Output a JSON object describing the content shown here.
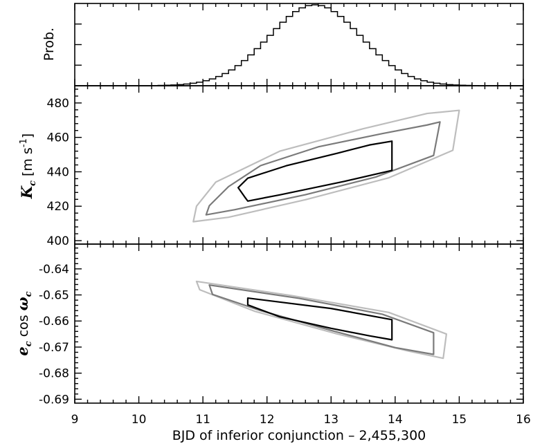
{
  "chart_data": [
    {
      "type": "histogram",
      "ylabel": "Prob.",
      "xlim": [
        9,
        16
      ],
      "bin_width": 0.1,
      "gaussian_mean": 12.75,
      "gaussian_sigma": 0.72,
      "bin_range": [
        9.8,
        15.6
      ]
    },
    {
      "type": "contour",
      "ylabel_main": "K",
      "ylabel_sub": "c",
      "ylabel_units": "[m s",
      "ylabel_exp": "-1",
      "ylabel_close": "]",
      "xlim": [
        9,
        16
      ],
      "ylim": [
        398,
        490
      ],
      "yticks": [
        "400",
        "420",
        "440",
        "460",
        "480"
      ],
      "ytick_values": [
        400,
        420,
        440,
        460,
        480
      ],
      "contours": [
        {
          "level": "1-sigma",
          "color": "#000000",
          "points": [
            [
              11.7,
              423.0
            ],
            [
              12.2,
              426.6
            ],
            [
              13.2,
              434.4
            ],
            [
              13.95,
              440.8
            ],
            [
              13.95,
              457.8
            ],
            [
              13.6,
              455.6
            ],
            [
              13.1,
              450.8
            ],
            [
              12.3,
              443.5
            ],
            [
              11.7,
              436.3
            ],
            [
              11.55,
              430.8
            ],
            [
              11.65,
              425.5
            ]
          ]
        },
        {
          "level": "2-sigma",
          "color": "#7a7a7a",
          "points": [
            [
              11.05,
              415.0
            ],
            [
              11.5,
              418.0
            ],
            [
              12.6,
              426.7
            ],
            [
              13.7,
              437.0
            ],
            [
              14.6,
              449.5
            ],
            [
              14.7,
              469.0
            ],
            [
              14.5,
              467.2
            ],
            [
              13.8,
              462.2
            ],
            [
              12.8,
              454.5
            ],
            [
              11.9,
              443.6
            ],
            [
              11.4,
              431.4
            ],
            [
              11.1,
              420.3
            ]
          ]
        },
        {
          "level": "3-sigma",
          "color": "#bdbdbd",
          "points": [
            [
              10.85,
              411.0
            ],
            [
              11.4,
              413.6
            ],
            [
              12.6,
              423.8
            ],
            [
              13.9,
              436.5
            ],
            [
              14.9,
              452.5
            ],
            [
              15.0,
              475.7
            ],
            [
              14.5,
              473.9
            ],
            [
              13.5,
              465.0
            ],
            [
              12.2,
              452.0
            ],
            [
              11.2,
              434.0
            ],
            [
              10.9,
              420.0
            ]
          ]
        }
      ]
    },
    {
      "type": "contour",
      "ylabel_pre": "e",
      "ylabel_pre_sub": "c",
      "ylabel_mid": "cos",
      "ylabel_post": "ω",
      "ylabel_post_sub": "c",
      "xlabel": "BJD of inferior conjunction – 2,455,300",
      "xlim": [
        9,
        16
      ],
      "ylim": [
        -0.6915,
        -0.6305
      ],
      "xticks": [
        "9",
        "10",
        "11",
        "12",
        "13",
        "14",
        "15",
        "16"
      ],
      "xtick_values": [
        9,
        10,
        11,
        12,
        13,
        14,
        15,
        16
      ],
      "yticks": [
        "-0.64",
        "-0.65",
        "-0.66",
        "-0.67",
        "-0.68",
        "-0.69"
      ],
      "ytick_values": [
        -0.64,
        -0.65,
        -0.66,
        -0.67,
        -0.68,
        -0.69
      ],
      "contours": [
        {
          "level": "1-sigma",
          "color": "#000000",
          "points": [
            [
              11.7,
              -0.6512
            ],
            [
              13.0,
              -0.6552
            ],
            [
              13.95,
              -0.6595
            ],
            [
              13.95,
              -0.6672
            ],
            [
              13.6,
              -0.6657
            ],
            [
              13.0,
              -0.6628
            ],
            [
              12.2,
              -0.6584
            ],
            [
              11.7,
              -0.6538
            ]
          ]
        },
        {
          "level": "2-sigma",
          "color": "#7a7a7a",
          "points": [
            [
              11.1,
              -0.6462
            ],
            [
              12.5,
              -0.6513
            ],
            [
              13.8,
              -0.6574
            ],
            [
              14.6,
              -0.6645
            ],
            [
              14.6,
              -0.6728
            ],
            [
              14.0,
              -0.6702
            ],
            [
              13.0,
              -0.6636
            ],
            [
              11.9,
              -0.656
            ],
            [
              11.15,
              -0.6498
            ]
          ]
        },
        {
          "level": "3-sigma",
          "color": "#bdbdbd",
          "points": [
            [
              10.9,
              -0.6448
            ],
            [
              12.4,
              -0.6503
            ],
            [
              13.9,
              -0.6567
            ],
            [
              14.8,
              -0.665
            ],
            [
              14.75,
              -0.6743
            ],
            [
              14.2,
              -0.6715
            ],
            [
              13.1,
              -0.665
            ],
            [
              11.8,
              -0.6562
            ],
            [
              10.95,
              -0.648
            ]
          ]
        }
      ]
    }
  ]
}
